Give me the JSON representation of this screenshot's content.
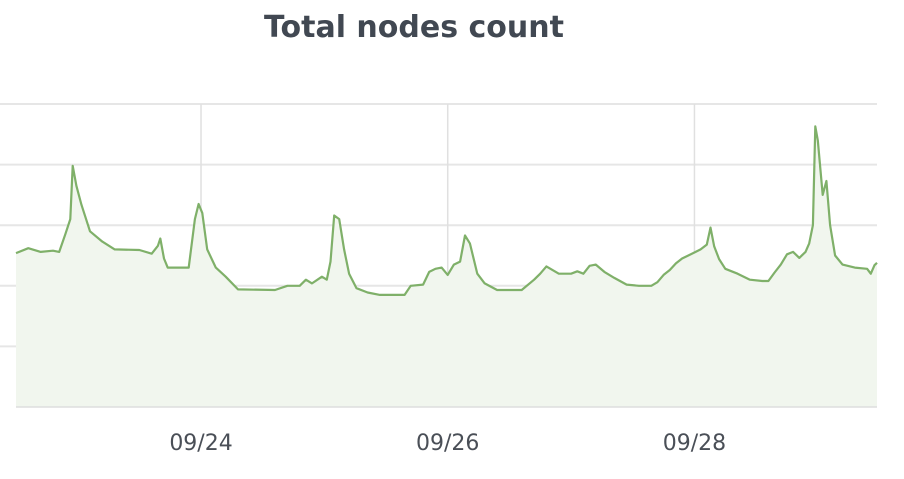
{
  "chart_data": {
    "type": "area",
    "title": "Total nodes count",
    "xlabel": "",
    "ylabel": "",
    "x_ticks": [
      "09/24",
      "09/26",
      "09/28"
    ],
    "x_tick_days": [
      24,
      26,
      28
    ],
    "xlim": [
      22.5,
      29.48
    ],
    "ylim": [
      0,
      50
    ],
    "y_grid": [
      10,
      20,
      30,
      40,
      50
    ],
    "grid": true,
    "series": [
      {
        "color": "#7fb069",
        "fill": "#f1f6ee",
        "points": [
          [
            22.5,
            25.4
          ],
          [
            22.6,
            26.2
          ],
          [
            22.7,
            25.6
          ],
          [
            22.8,
            25.8
          ],
          [
            22.85,
            25.6
          ],
          [
            22.9,
            28.5
          ],
          [
            22.94,
            31.0
          ],
          [
            22.96,
            39.8
          ],
          [
            22.99,
            36.5
          ],
          [
            23.03,
            33.4
          ],
          [
            23.06,
            31.5
          ],
          [
            23.1,
            29.0
          ],
          [
            23.2,
            27.3
          ],
          [
            23.3,
            26.0
          ],
          [
            23.5,
            25.9
          ],
          [
            23.6,
            25.3
          ],
          [
            23.65,
            26.6
          ],
          [
            23.67,
            27.8
          ],
          [
            23.7,
            24.5
          ],
          [
            23.73,
            23.0
          ],
          [
            23.9,
            23.0
          ],
          [
            23.95,
            31.0
          ],
          [
            23.98,
            33.5
          ],
          [
            24.01,
            32.0
          ],
          [
            24.05,
            26.0
          ],
          [
            24.12,
            23.0
          ],
          [
            24.2,
            21.5
          ],
          [
            24.3,
            19.4
          ],
          [
            24.6,
            19.3
          ],
          [
            24.7,
            20.0
          ],
          [
            24.8,
            20.0
          ],
          [
            24.85,
            21.0
          ],
          [
            24.9,
            20.4
          ],
          [
            24.98,
            21.5
          ],
          [
            25.02,
            21.0
          ],
          [
            25.05,
            24.0
          ],
          [
            25.08,
            31.6
          ],
          [
            25.12,
            31.0
          ],
          [
            25.16,
            26.0
          ],
          [
            25.2,
            22.0
          ],
          [
            25.26,
            19.6
          ],
          [
            25.35,
            18.9
          ],
          [
            25.45,
            18.5
          ],
          [
            25.65,
            18.5
          ],
          [
            25.7,
            20.0
          ],
          [
            25.8,
            20.2
          ],
          [
            25.85,
            22.3
          ],
          [
            25.9,
            22.8
          ],
          [
            25.95,
            23.0
          ],
          [
            26.0,
            21.8
          ],
          [
            26.05,
            23.5
          ],
          [
            26.1,
            24.0
          ],
          [
            26.14,
            28.3
          ],
          [
            26.18,
            27.0
          ],
          [
            26.24,
            22.0
          ],
          [
            26.3,
            20.4
          ],
          [
            26.4,
            19.3
          ],
          [
            26.6,
            19.3
          ],
          [
            26.7,
            21.0
          ],
          [
            26.75,
            22.0
          ],
          [
            26.8,
            23.2
          ],
          [
            26.9,
            22.0
          ],
          [
            27.0,
            22.0
          ],
          [
            27.05,
            22.4
          ],
          [
            27.1,
            22.0
          ],
          [
            27.15,
            23.3
          ],
          [
            27.2,
            23.5
          ],
          [
            27.27,
            22.3
          ],
          [
            27.35,
            21.3
          ],
          [
            27.45,
            20.2
          ],
          [
            27.55,
            20.0
          ],
          [
            27.65,
            20.0
          ],
          [
            27.7,
            20.6
          ],
          [
            27.75,
            21.8
          ],
          [
            27.8,
            22.6
          ],
          [
            27.85,
            23.7
          ],
          [
            27.9,
            24.5
          ],
          [
            27.95,
            25.0
          ],
          [
            28.0,
            25.5
          ],
          [
            28.05,
            26.0
          ],
          [
            28.1,
            26.8
          ],
          [
            28.13,
            29.6
          ],
          [
            28.16,
            26.5
          ],
          [
            28.2,
            24.4
          ],
          [
            28.25,
            22.8
          ],
          [
            28.35,
            22.0
          ],
          [
            28.45,
            21.0
          ],
          [
            28.55,
            20.8
          ],
          [
            28.6,
            20.8
          ],
          [
            28.65,
            22.2
          ],
          [
            28.7,
            23.5
          ],
          [
            28.75,
            25.2
          ],
          [
            28.8,
            25.6
          ],
          [
            28.85,
            24.6
          ],
          [
            28.9,
            25.6
          ],
          [
            28.93,
            27.0
          ],
          [
            28.96,
            30.0
          ],
          [
            28.98,
            46.3
          ],
          [
            29.0,
            44.0
          ],
          [
            29.04,
            35.0
          ],
          [
            29.07,
            37.3
          ],
          [
            29.1,
            30.0
          ],
          [
            29.14,
            25.0
          ],
          [
            29.2,
            23.5
          ],
          [
            29.3,
            23.0
          ],
          [
            29.4,
            22.8
          ],
          [
            29.43,
            22.0
          ],
          [
            29.46,
            23.4
          ],
          [
            29.48,
            23.8
          ]
        ]
      }
    ]
  }
}
